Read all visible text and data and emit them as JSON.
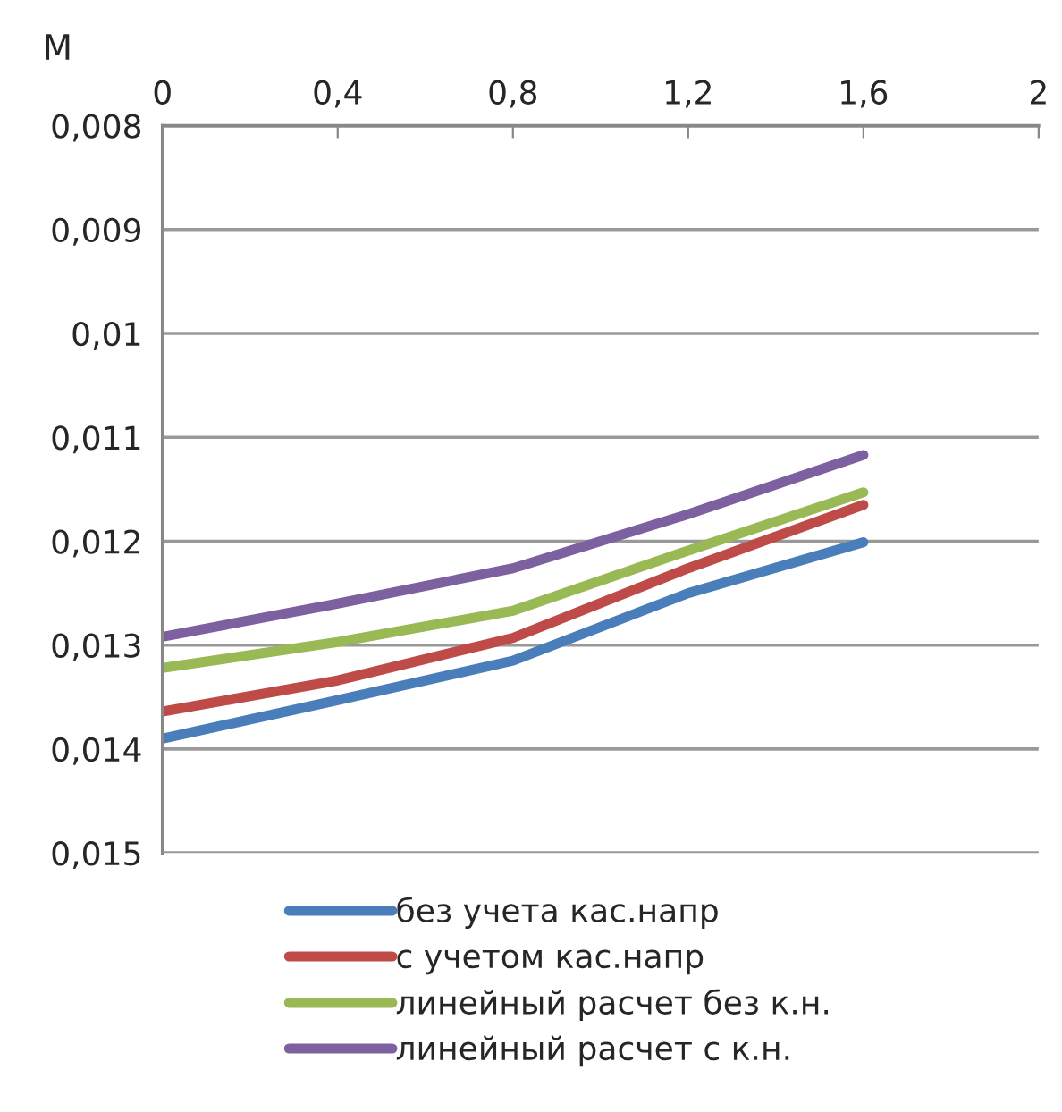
{
  "chart_data": {
    "type": "line",
    "ylabel": "M",
    "x": [
      0,
      0.4,
      0.8,
      1.2,
      1.6
    ],
    "xlim": [
      0,
      2
    ],
    "xticks": [
      {
        "value": 0,
        "label": "0"
      },
      {
        "value": 0.4,
        "label": "0,4"
      },
      {
        "value": 0.8,
        "label": "0,8"
      },
      {
        "value": 1.2,
        "label": "1,2"
      },
      {
        "value": 1.6,
        "label": "1,6"
      },
      {
        "value": 2,
        "label": "2"
      }
    ],
    "ylim": [
      0.015,
      0.008
    ],
    "yticks": [
      {
        "value": 0.008,
        "label": "0,008"
      },
      {
        "value": 0.009,
        "label": "0,009"
      },
      {
        "value": 0.01,
        "label": "0,01"
      },
      {
        "value": 0.011,
        "label": "0,011"
      },
      {
        "value": 0.012,
        "label": "0,012"
      },
      {
        "value": 0.013,
        "label": "0,013"
      },
      {
        "value": 0.014,
        "label": "0,014"
      },
      {
        "value": 0.015,
        "label": "0,015"
      }
    ],
    "grid": "y",
    "legend": "bottom",
    "marker": "none",
    "line_style": "solid",
    "series": [
      {
        "name": "без учета кас.напр",
        "color": "#4a7ebb",
        "values": [
          0.0139,
          0.01353,
          0.01315,
          0.0125,
          0.01201
        ]
      },
      {
        "name": "с учетом кас.напр",
        "color": "#be4b48",
        "values": [
          0.01364,
          0.01334,
          0.01293,
          0.01226,
          0.01165
        ]
      },
      {
        "name": "линейный расчет без к.н.",
        "color": "#98b954",
        "values": [
          0.01322,
          0.01297,
          0.01267,
          0.01209,
          0.01153
        ]
      },
      {
        "name": "линейный расчет с к.н.",
        "color": "#7d60a0",
        "values": [
          0.01292,
          0.0126,
          0.01226,
          0.01174,
          0.01117
        ]
      }
    ]
  }
}
